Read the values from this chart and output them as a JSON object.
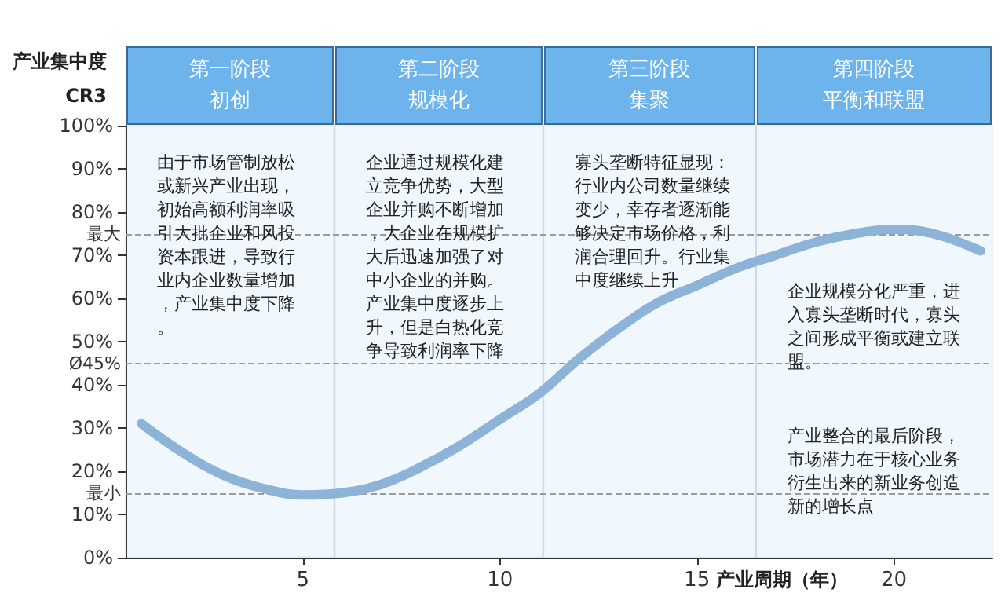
{
  "chart_data": {
    "type": "line",
    "ylabel": "产业集中度\nCR3",
    "xlabel": "产业周期（年）",
    "x": [
      0.9,
      2,
      3,
      4,
      5,
      6,
      7,
      8,
      9,
      10,
      11,
      12,
      13,
      14,
      15,
      16,
      17,
      18,
      19,
      20,
      21,
      22.2
    ],
    "series": [
      {
        "color": "#8db4d8",
        "values": [
          31,
          24,
          19,
          16,
          14.5,
          15,
          17,
          21,
          26,
          32,
          38,
          46,
          53,
          59,
          63,
          67,
          70,
          73,
          75,
          76,
          75,
          71
        ]
      }
    ],
    "xlim": [
      0.5,
      22.5
    ],
    "xticks": [
      5,
      10,
      15,
      20
    ],
    "ylim": [
      0,
      100
    ],
    "yticks": [
      {
        "value": 0,
        "label": "0%"
      },
      {
        "value": 10,
        "label": "10%"
      },
      {
        "value": 20,
        "label": "20%"
      },
      {
        "value": 30,
        "label": "30%"
      },
      {
        "value": 40,
        "label": "40%"
      },
      {
        "value": 50,
        "label": "50%"
      },
      {
        "value": 60,
        "label": "60%"
      },
      {
        "value": 70,
        "label": "70%"
      },
      {
        "value": 80,
        "label": "80%"
      },
      {
        "value": 90,
        "label": "90%"
      },
      {
        "value": 100,
        "label": "100%"
      }
    ],
    "ref_lines": [
      {
        "axis": "y",
        "value": 75,
        "label": "最大",
        "line_style": "dashed",
        "color": "#9a9a9a"
      },
      {
        "axis": "y",
        "value": 45,
        "label": "Ø45%",
        "line_style": "dashed",
        "color": "#9a9a9a"
      },
      {
        "axis": "y",
        "value": 15,
        "label": "最小",
        "line_style": "dashed",
        "color": "#9a9a9a"
      }
    ],
    "bands": [
      {
        "axis": "x",
        "from": 0.5,
        "to": 5.8,
        "label": "第一阶段初创",
        "color": "#6db3ec"
      },
      {
        "axis": "x",
        "from": 5.8,
        "to": 11.1,
        "label": "第二阶段规模化",
        "color": "#6db3ec"
      },
      {
        "axis": "x",
        "from": 11.1,
        "to": 16.5,
        "label": "第三阶段集聚",
        "color": "#6db3ec"
      },
      {
        "axis": "x",
        "from": 16.5,
        "to": 22.5,
        "label": "第四阶段平衡和联盟",
        "color": "#6db3ec"
      }
    ],
    "annotations": [
      "由于市场管制放松或新兴产业出现，初始高额利润率吸引大批企业和风投资本跟进，导致行业内企业数量增加，产业集中度下降。",
      "企业通过规模化建立竞争优势，大型企业并购不断增加，大企业在规模扩大后迅速加强了对中小企业的并购。产业集中度逐步上升，但是白热化竞争导致利润率下降",
      "寡头垄断特征显现：行业内公司数量继续变少，幸存者逐渐能够决定市场价格，利润合理回升。行业集中度继续上升",
      "企业规模分化严重，进入寡头垄断时代，寡头之间形成平衡或建立联盟。",
      "产业整合的最后阶段，市场潜力在于核心业务衍生出来的新业务创造新的增长点"
    ],
    "grid": false,
    "marker": "none",
    "line_style": "solid"
  }
}
